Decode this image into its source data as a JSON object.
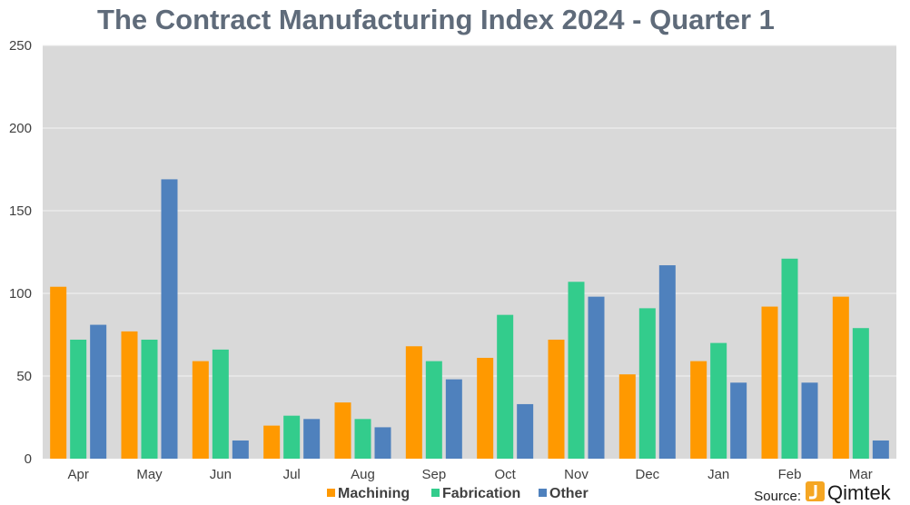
{
  "chart_data": {
    "type": "bar",
    "title": "The Contract Manufacturing Index 2024 - Quarter 1",
    "xlabel": "",
    "ylabel": "",
    "ylim": [
      0,
      250
    ],
    "yticks": [
      0,
      50,
      100,
      150,
      200,
      250
    ],
    "grid": true,
    "legend_position": "bottom",
    "categories": [
      "Apr",
      "May",
      "Jun",
      "Jul",
      "Aug",
      "Sep",
      "Oct",
      "Nov",
      "Dec",
      "Jan",
      "Feb",
      "Mar"
    ],
    "series": [
      {
        "name": "Machining",
        "color": "#ff9900",
        "values": [
          104,
          77,
          59,
          20,
          34,
          68,
          61,
          72,
          51,
          59,
          92,
          98
        ]
      },
      {
        "name": "Fabrication",
        "color": "#33cc8c",
        "values": [
          72,
          72,
          66,
          26,
          24,
          59,
          87,
          107,
          91,
          70,
          121,
          79
        ]
      },
      {
        "name": "Other",
        "color": "#4f81bd",
        "values": [
          81,
          169,
          11,
          24,
          19,
          48,
          33,
          98,
          117,
          46,
          46,
          11
        ]
      }
    ],
    "plot_background": "#d9d9d9"
  },
  "source": {
    "label": "Source:",
    "brand": "Qimtek",
    "brand_color": "#f5a623",
    "icon": "qimtek-logo-icon"
  }
}
